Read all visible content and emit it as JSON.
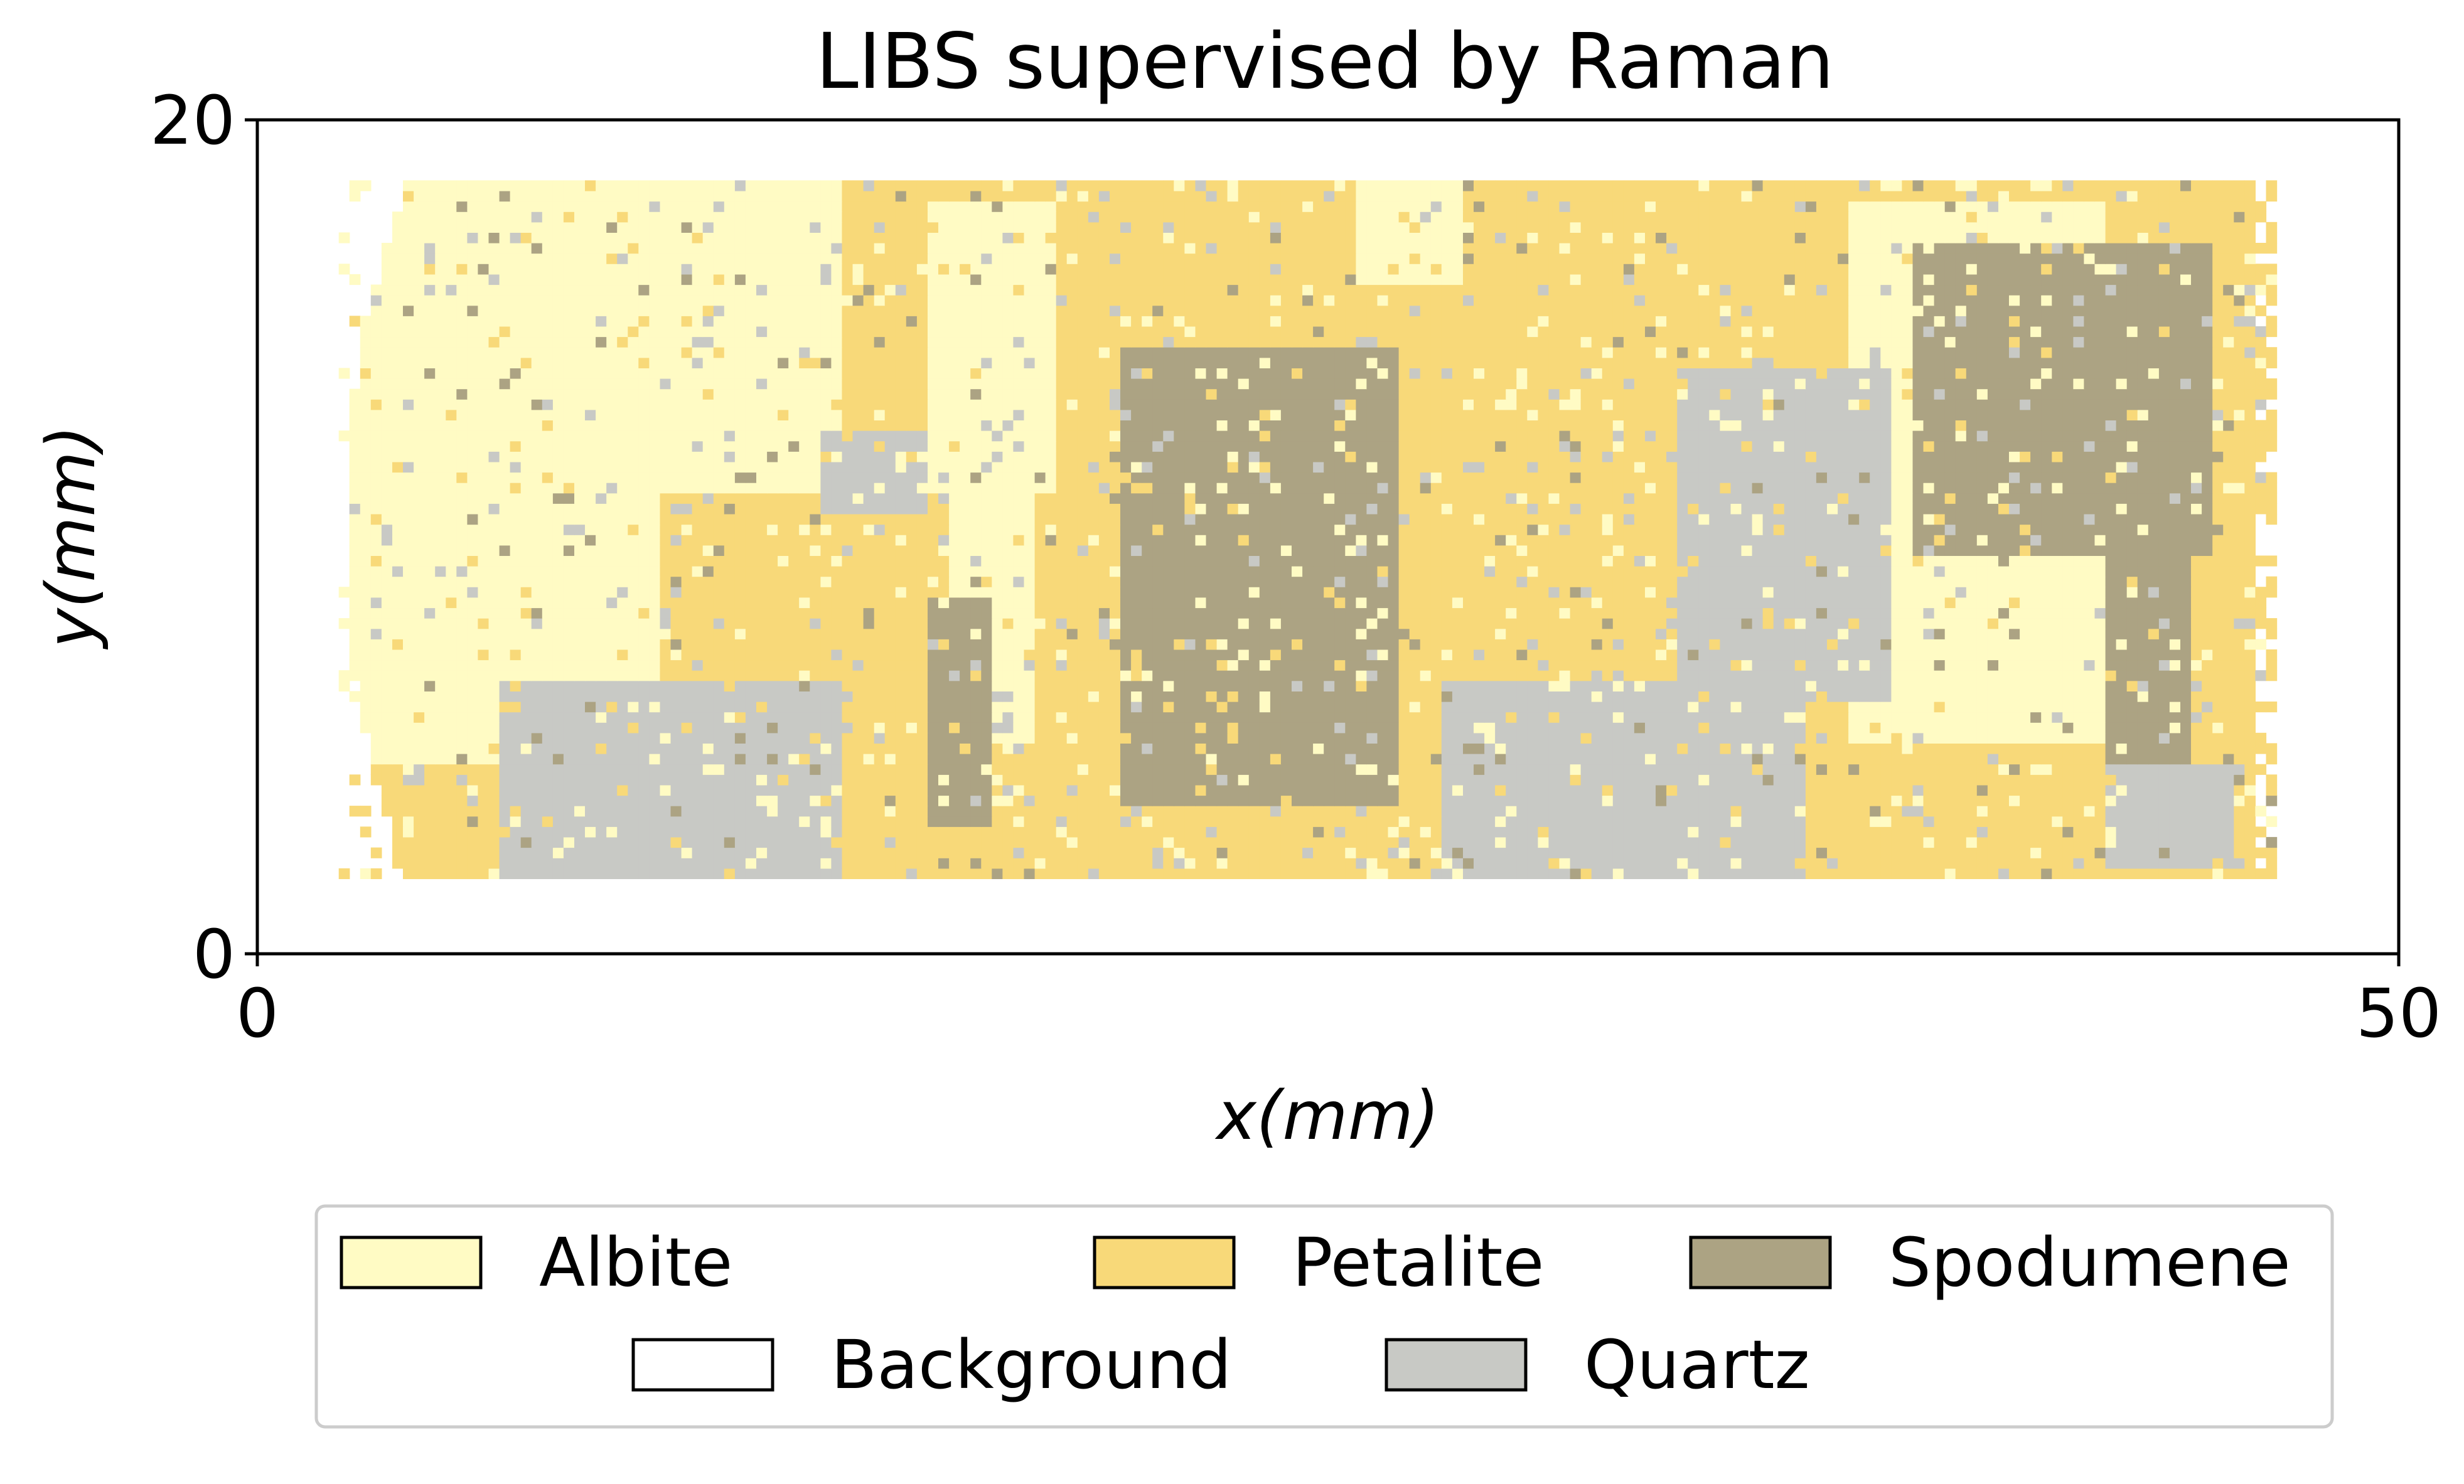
{
  "chart_data": {
    "type": "heatmap",
    "title": "LIBS supervised by Raman",
    "xlabel": "x(mm)",
    "ylabel": "y(mm)",
    "xlim": [
      0,
      50
    ],
    "ylim": [
      0,
      20
    ],
    "xticks": [
      "0",
      "50"
    ],
    "yticks": [
      "0",
      "20"
    ],
    "grid": false,
    "legend_position": "bottom",
    "classes": [
      {
        "name": "Albite",
        "color": "#FFFBC4"
      },
      {
        "name": "Petalite",
        "color": "#F8D979"
      },
      {
        "name": "Spodumene",
        "color": "#ACA383"
      },
      {
        "name": "Background",
        "color": "#FFFFFF"
      },
      {
        "name": "Quartz",
        "color": "#C8C9C5"
      }
    ],
    "sample_extent": {
      "x": [
        1.9,
        47.0
      ],
      "y": [
        1.8,
        18.4
      ]
    },
    "regions": [
      {
        "class": "Petalite",
        "x": [
          1.9,
          47.0
        ],
        "y": [
          1.8,
          18.4
        ]
      },
      {
        "class": "Albite",
        "x": [
          1.9,
          9.3
        ],
        "y": [
          4.5,
          18.4
        ]
      },
      {
        "class": "Albite",
        "x": [
          9.3,
          13.5
        ],
        "y": [
          11.0,
          18.4
        ]
      },
      {
        "class": "Albite",
        "x": [
          15.5,
          18.5
        ],
        "y": [
          11.0,
          18.0
        ]
      },
      {
        "class": "Albite",
        "x": [
          16.0,
          18.0
        ],
        "y": [
          5.0,
          11.0
        ]
      },
      {
        "class": "Albite",
        "x": [
          25.5,
          28.0
        ],
        "y": [
          16.0,
          18.4
        ]
      },
      {
        "class": "Albite",
        "x": [
          37.0,
          43.0
        ],
        "y": [
          5.0,
          18.0
        ]
      },
      {
        "class": "Spodumene",
        "x": [
          20.0,
          26.5
        ],
        "y": [
          3.5,
          14.5
        ]
      },
      {
        "class": "Spodumene",
        "x": [
          15.5,
          17.0
        ],
        "y": [
          3.0,
          8.5
        ]
      },
      {
        "class": "Spodumene",
        "x": [
          43.0,
          45.0
        ],
        "y": [
          4.5,
          9.5
        ]
      },
      {
        "class": "Spodumene",
        "x": [
          38.5,
          45.5
        ],
        "y": [
          9.5,
          17.0
        ]
      },
      {
        "class": "Quartz",
        "x": [
          5.5,
          13.5
        ],
        "y": [
          1.8,
          6.5
        ]
      },
      {
        "class": "Quartz",
        "x": [
          13.0,
          15.5
        ],
        "y": [
          10.5,
          12.5
        ]
      },
      {
        "class": "Quartz",
        "x": [
          27.5,
          36.0
        ],
        "y": [
          1.8,
          6.5
        ]
      },
      {
        "class": "Quartz",
        "x": [
          33.0,
          38.0
        ],
        "y": [
          6.0,
          14.0
        ]
      },
      {
        "class": "Quartz",
        "x": [
          43.0,
          46.0
        ],
        "y": [
          2.0,
          4.5
        ]
      }
    ]
  }
}
